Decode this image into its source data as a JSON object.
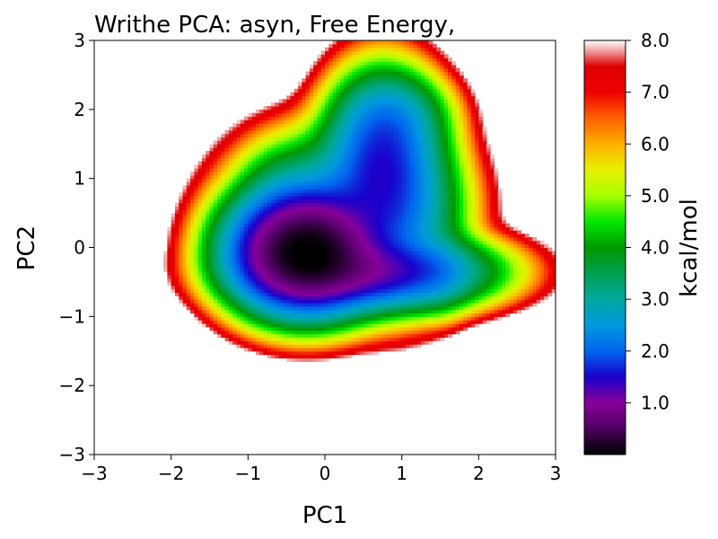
{
  "chart_data": {
    "type": "heatmap",
    "title": "Writhe PCA: asyn, Free Energy,",
    "xlabel": "PC1",
    "ylabel": "PC2",
    "xlim": [
      -3,
      3
    ],
    "ylim": [
      -3,
      3
    ],
    "x_ticks": [
      "−3",
      "−2",
      "−1",
      "0",
      "1",
      "2",
      "3"
    ],
    "x_tick_values": [
      -3,
      -2,
      -1,
      0,
      1,
      2,
      3
    ],
    "y_ticks": [
      "−3",
      "−2",
      "−1",
      "0",
      "1",
      "2",
      "3"
    ],
    "y_tick_values": [
      -3,
      -2,
      -1,
      0,
      1,
      2,
      3
    ],
    "colorbar": {
      "label": "kcal/mol",
      "range": [
        0,
        8
      ],
      "ticks": [
        "1.0",
        "2.0",
        "3.0",
        "4.0",
        "5.0",
        "6.0",
        "7.0",
        "8.0"
      ],
      "tick_values": [
        1,
        2,
        3,
        4,
        5,
        6,
        7,
        8
      ],
      "colormap": [
        {
          "v": 0.0,
          "color": "#000000"
        },
        {
          "v": 0.6,
          "color": "#5a0070"
        },
        {
          "v": 1.0,
          "color": "#880099"
        },
        {
          "v": 1.5,
          "color": "#1a00cc"
        },
        {
          "v": 2.0,
          "color": "#0066ee"
        },
        {
          "v": 2.5,
          "color": "#0099dd"
        },
        {
          "v": 3.0,
          "color": "#00a8a0"
        },
        {
          "v": 3.5,
          "color": "#00a050"
        },
        {
          "v": 4.0,
          "color": "#009900"
        },
        {
          "v": 4.5,
          "color": "#00e800"
        },
        {
          "v": 5.0,
          "color": "#a8ff00"
        },
        {
          "v": 5.5,
          "color": "#e8f000"
        },
        {
          "v": 6.0,
          "color": "#ffb000"
        },
        {
          "v": 6.5,
          "color": "#ff6000"
        },
        {
          "v": 7.0,
          "color": "#ee0000"
        },
        {
          "v": 7.5,
          "color": "#dd0000"
        },
        {
          "v": 7.8,
          "color": "#f0a0a0"
        },
        {
          "v": 8.0,
          "color": "#ffffff"
        }
      ]
    },
    "basins": [
      {
        "x": -0.25,
        "y": -0.05,
        "depth": 8.0,
        "sx": 0.45,
        "sy": 0.4
      },
      {
        "x": 0.6,
        "y": -0.35,
        "depth": 6.6,
        "sx": 0.7,
        "sy": 0.25
      },
      {
        "x": 0.75,
        "y": 1.35,
        "depth": 6.2,
        "sx": 0.35,
        "sy": 0.55
      },
      {
        "x": 0.2,
        "y": 0.6,
        "depth": 5.5,
        "sx": 0.6,
        "sy": 0.5
      },
      {
        "x": 0.9,
        "y": 0.5,
        "depth": 5.5,
        "sx": 0.4,
        "sy": 0.6
      },
      {
        "x": 1.5,
        "y": -0.35,
        "depth": 4.0,
        "sx": 0.2,
        "sy": 0.3
      },
      {
        "x": -0.6,
        "y": 0.8,
        "depth": 3.5,
        "sx": 0.25,
        "sy": 0.35
      },
      {
        "x": 0.9,
        "y": 1.9,
        "depth": 4.5,
        "sx": 0.35,
        "sy": 0.3
      }
    ]
  }
}
